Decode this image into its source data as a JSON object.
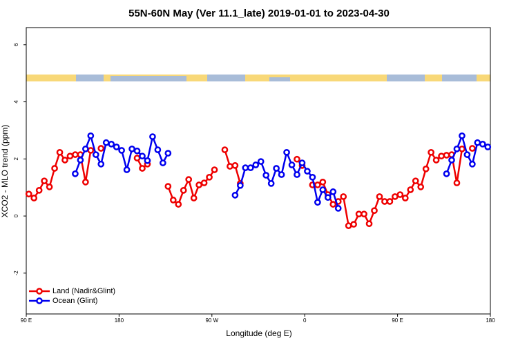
{
  "chart_data": {
    "type": "line",
    "title": "55N-60N May (Ver 11.1_late)   2019-01-01 to 2023-04-30",
    "x_label": "Longitude (deg E)",
    "y_label": "XCO2 - MLO trend (ppm)",
    "xlim": [
      90,
      540
    ],
    "ylim": [
      -3.43,
      6.6
    ],
    "xticks": [
      {
        "value": 90,
        "label": "90 E"
      },
      180,
      {
        "value": 270,
        "label": "90 W"
      },
      {
        "value": 360,
        "label": "0"
      },
      {
        "value": 450,
        "label": "90 E"
      },
      180
    ],
    "yticks": [
      -2,
      0,
      2,
      4,
      6
    ],
    "legend": "bottom-left",
    "x": [
      92.5,
      97.5,
      102.5,
      107.5,
      112.5,
      117.5,
      122.5,
      127.5,
      132.5,
      137.5,
      142.5,
      147.5,
      152.5,
      157.5,
      162.5,
      167.5,
      172.5,
      177.5,
      182.5,
      187.5,
      192.5,
      197.5,
      202.5,
      207.5,
      212.5,
      217.5,
      222.5,
      227.5,
      232.5,
      237.5,
      242.5,
      247.5,
      252.5,
      257.5,
      262.5,
      267.5,
      272.5,
      277.5,
      282.5,
      287.5,
      292.5,
      297.5,
      302.5,
      307.5,
      312.5,
      317.5,
      322.5,
      327.5,
      332.5,
      337.5,
      342.5,
      347.5,
      352.5,
      357.5,
      362.5,
      367.5,
      372.5,
      377.5,
      382.5,
      387.5,
      392.5,
      397.5,
      402.5,
      407.5,
      412.5,
      417.5,
      422.5,
      427.5,
      432.5,
      437.5,
      442.5,
      447.5,
      452.5,
      457.5,
      462.5,
      467.5,
      472.5,
      477.5,
      482.5,
      487.5,
      492.5,
      497.5,
      502.5,
      507.5,
      512.5,
      517.5,
      522.5,
      527.5,
      532.5,
      537.5
    ],
    "series": [
      {
        "name": "Land (Nadir&Glint)",
        "color": "#ee0000",
        "values": [
          0.77,
          0.63,
          0.9,
          1.23,
          1.02,
          1.67,
          2.23,
          1.96,
          2.1,
          2.15,
          2.15,
          1.19,
          2.3,
          null,
          2.37,
          null,
          null,
          null,
          null,
          null,
          null,
          2.03,
          1.67,
          1.82,
          null,
          null,
          null,
          1.04,
          0.56,
          0.41,
          0.9,
          1.28,
          0.63,
          1.09,
          1.16,
          1.36,
          1.62,
          null,
          2.32,
          1.74,
          1.77,
          1.14,
          null,
          null,
          null,
          null,
          null,
          null,
          null,
          null,
          null,
          null,
          1.99,
          1.77,
          null,
          1.09,
          1.09,
          1.19,
          0.75,
          0.41,
          0.51,
          0.68,
          -0.34,
          -0.29,
          0.07,
          0.07,
          -0.27,
          0.19,
          0.68,
          0.51,
          0.51,
          0.68,
          0.75,
          0.63,
          0.92,
          1.23,
          1.02,
          1.65,
          2.23,
          1.96,
          2.1,
          2.13,
          2.15,
          1.16,
          2.35,
          null,
          2.37,
          null,
          null,
          null
        ]
      },
      {
        "name": "Ocean (Glint)",
        "color": "#0000ee",
        "values": [
          null,
          null,
          null,
          null,
          null,
          null,
          null,
          null,
          null,
          1.48,
          1.96,
          2.35,
          2.81,
          2.15,
          1.82,
          2.57,
          2.52,
          2.42,
          2.3,
          1.62,
          2.35,
          2.28,
          2.1,
          1.94,
          2.78,
          2.32,
          1.86,
          2.2,
          null,
          null,
          null,
          null,
          null,
          null,
          null,
          null,
          null,
          null,
          null,
          null,
          0.73,
          1.07,
          1.69,
          1.69,
          1.79,
          1.91,
          1.43,
          1.14,
          1.67,
          1.45,
          2.23,
          1.79,
          1.45,
          1.86,
          1.57,
          1.36,
          0.48,
          0.92,
          0.65,
          0.85,
          0.27,
          null,
          null,
          null,
          null,
          null,
          null,
          null,
          null,
          null,
          null,
          null,
          null,
          null,
          null,
          null,
          null,
          null,
          null,
          null,
          null,
          1.48,
          1.96,
          2.35,
          2.81,
          2.15,
          1.82,
          2.57,
          2.52,
          2.42
        ]
      }
    ]
  }
}
